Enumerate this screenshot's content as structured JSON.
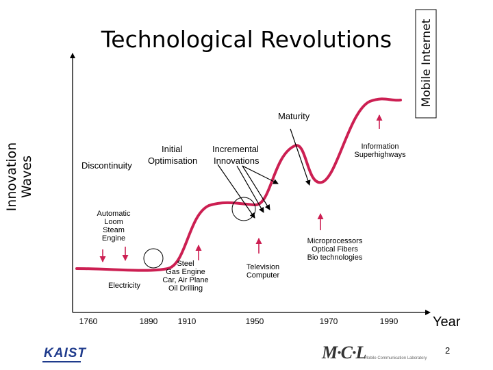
{
  "title": "Technological Revolutions",
  "y_axis_title_line1": "Innovation",
  "y_axis_title_line2": "Waves",
  "x_axis_title": "Year",
  "x_ticks": [
    "1760",
    "1890",
    "1910",
    "1950",
    "1970",
    "1990"
  ],
  "labels": {
    "maturity": "Maturity",
    "discontinuity": "Discontinuity",
    "initial": "Initial",
    "optimisation": "Optimisation",
    "incremental": "Incremental",
    "innovations": "Innovations",
    "info_line1": "Information",
    "info_line2": "Superhighways",
    "mobile_internet": "Mobile Internet",
    "auto_line1": "Automatic",
    "auto_line2": "Loom",
    "auto_line3": "Steam",
    "auto_line4": "Engine",
    "electricity": "Electricity",
    "steel_line1": "Steel",
    "steel_line2": "Gas Engine",
    "steel_line3": "Car, Air Plane",
    "steel_line4": "Oil Drilling",
    "tv_line1": "Television",
    "tv_line2": "Computer",
    "micro_line1": "Microprocessors",
    "micro_line2": "Optical Fibers",
    "micro_line3": "Bio technologies"
  },
  "page_number": "2",
  "logos": {
    "kaist": "KAIST",
    "mcl_mark": "M·C·L",
    "mcl_subtitle": "Mobile Communication Laboratory"
  },
  "colors": {
    "curve": "#cc1f52",
    "arrow_red": "#cc1f52",
    "axis": "#000000",
    "logo_blue": "#1f3b8c"
  }
}
